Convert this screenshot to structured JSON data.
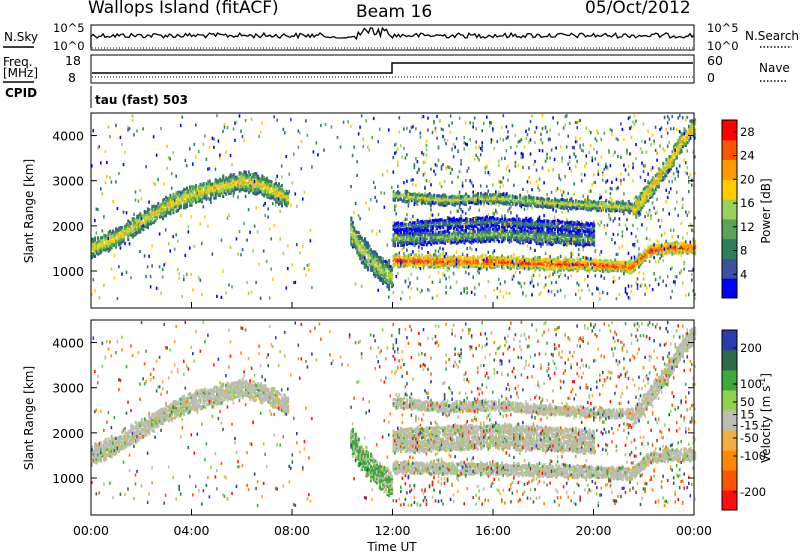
{
  "header": {
    "station": "Wallops Island (fitACF)",
    "beam": "Beam 16",
    "date": "05/Oct/2012"
  },
  "strip_labels": {
    "nsky": "N.Sky",
    "nsearch": "N.Search",
    "freq_line1": "Freq.",
    "freq_line2": "[MHz]",
    "cpid": "CPID",
    "nave": "Nave",
    "cpid_value": "tau (fast) 503"
  },
  "strip_ticks": {
    "noise_left": [
      "10^5",
      "10^0"
    ],
    "noise_right": [
      "10^5",
      "10^0"
    ],
    "freq_left": [
      "18",
      "8"
    ],
    "freq_right": [
      "60",
      "0"
    ]
  },
  "axes": {
    "x_label": "Time UT",
    "x_ticks": [
      "00:00",
      "04:00",
      "08:00",
      "12:00",
      "16:00",
      "20:00",
      "00:00"
    ],
    "y_label": "Slant Range [km]",
    "y_ticks": [
      "1000",
      "2000",
      "3000",
      "4000"
    ]
  },
  "colors": {
    "power": [
      "#0000ff",
      "#3a50a0",
      "#2e7f5e",
      "#5aa357",
      "#9bd158",
      "#ffcc00",
      "#ff9900",
      "#ff5500",
      "#ff0000"
    ],
    "velocity": [
      "#2a3bb0",
      "#2e6a4a",
      "#3ea83e",
      "#8fd24e",
      "#bcbcb4",
      "#f0b040",
      "#ff8800",
      "#ff5500",
      "#ff1010"
    ]
  },
  "chart_data": [
    {
      "type": "line",
      "title": "",
      "series": [
        {
          "name": "N.Sky",
          "description_shape": "high plateau near 10^5 throughout, brief spike near 10:40-11:45 UT"
        },
        {
          "name": "N.Search",
          "description_shape": "dotted along bottom"
        }
      ],
      "ylim_log": [
        0,
        5
      ],
      "xlim_hours": [
        0,
        24
      ]
    },
    {
      "type": "line",
      "series": [
        {
          "name": "Freq. [MHz]",
          "x": [
            0,
            12,
            12,
            24
          ],
          "values": [
            10.5,
            10.5,
            15.5,
            15.5
          ]
        },
        {
          "name": "Nave",
          "values_level": "dotted near bottom"
        }
      ],
      "ylim_left": [
        8,
        18
      ],
      "ylim_right": [
        0,
        60
      ]
    },
    {
      "type": "heatmap",
      "title": "Power [dB]",
      "xlabel": "Time UT",
      "ylabel": "Slant Range [km]",
      "xlim_hours": [
        0,
        24
      ],
      "ylim": [
        180,
        4500
      ],
      "colorbar": {
        "label": "Power [dB]",
        "ticks": [
          4,
          8,
          12,
          16,
          20,
          24,
          28
        ],
        "range": [
          0,
          30
        ]
      },
      "bands": [
        {
          "t": [
            0.0,
            1.0,
            2.0,
            3.0,
            4.0,
            5.0,
            6.0,
            6.8,
            7.3,
            7.8
          ],
          "r": [
            1500,
            1750,
            2100,
            2450,
            2700,
            2850,
            3000,
            2900,
            2750,
            2600
          ],
          "width": 180,
          "core_db": 20
        },
        {
          "t": [
            10.3,
            10.7,
            11.2,
            11.6,
            11.95
          ],
          "r": [
            1900,
            1500,
            1200,
            1000,
            870
          ],
          "width": 250,
          "core_db": 18
        },
        {
          "t": [
            12.0,
            14.0,
            16.0,
            18.0,
            20.0,
            21.5
          ],
          "r": [
            2680,
            2570,
            2620,
            2520,
            2460,
            2420
          ],
          "width": 90,
          "core_db": 18
        },
        {
          "t": [
            12.0,
            14.0,
            16.0,
            18.0,
            20.0,
            21.5,
            22.2,
            23.0,
            24.0
          ],
          "r": [
            1230,
            1220,
            1210,
            1160,
            1140,
            1090,
            1450,
            1520,
            1520
          ],
          "width": 110,
          "core_db": 28
        },
        {
          "t": [
            12.0,
            14.0,
            16.0,
            18.0,
            20.0
          ],
          "r": [
            1720,
            1760,
            1820,
            1760,
            1700
          ],
          "width": 130,
          "core_db": 14
        },
        {
          "t": [
            12.0,
            14.0,
            16.0,
            18.0,
            20.0
          ],
          "r": [
            1980,
            2050,
            2100,
            2030,
            1960
          ],
          "width": 90,
          "core_db": 10
        },
        {
          "t": [
            21.5,
            22.2,
            23.0,
            23.5,
            24.0
          ],
          "r": [
            2300,
            2800,
            3400,
            3900,
            4200
          ],
          "width": 180,
          "core_db": 22
        }
      ]
    },
    {
      "type": "heatmap",
      "title": "Velocity [m s^-1]",
      "xlabel": "Time UT",
      "ylabel": "Slant Range [km]",
      "xlim_hours": [
        0,
        24
      ],
      "ylim": [
        180,
        4500
      ],
      "colorbar": {
        "label": "Velocity [m s^-1]",
        "ticks": [
          200,
          100,
          50,
          15,
          -15,
          -50,
          -100,
          -200
        ],
        "range": [
          -250,
          250
        ]
      },
      "note": "same echo regions as power panel; mostly low velocity (grey) ground scatter with scattered green/orange ionospheric echoes"
    }
  ]
}
